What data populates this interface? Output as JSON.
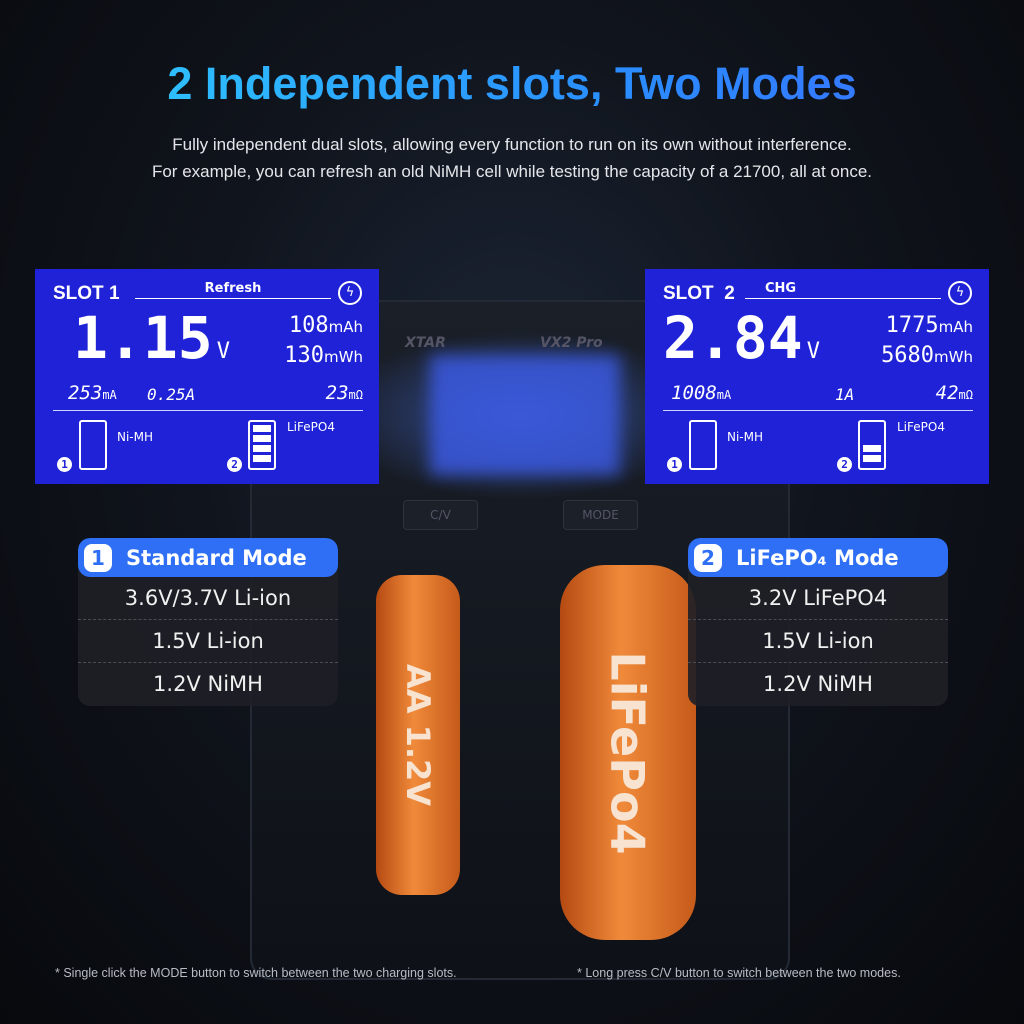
{
  "title": "2 Independent slots, Two Modes",
  "subtitle": [
    "Fully independent dual slots, allowing every function to run on its own without interference.",
    "For example, you can refresh an old NiMH cell while testing the capacity of a 21700, all at once."
  ],
  "device": {
    "brand": "XTAR",
    "model": "VX2 Pro",
    "buttons": [
      "C/V",
      "MODE"
    ]
  },
  "lcd": [
    {
      "slot": "SLOT 1",
      "mode": "Refresh",
      "voltage": "1.15",
      "voltage_unit": "V",
      "capacity": "108",
      "capacity_unit": "mAh",
      "energy": "130",
      "energy_unit": "mWh",
      "current": "253",
      "current_unit": "mA",
      "set_current": "0.25A",
      "resistance": "23",
      "resistance_unit": "mΩ",
      "mode1_chem": "Ni-MH",
      "mode2_chem": "LiFePO4",
      "mode2_bars": 4,
      "icon": "fast-charge-icon"
    },
    {
      "slot": "SLOT  2",
      "mode": "CHG",
      "voltage": "2.84",
      "voltage_unit": "V",
      "capacity": "1775",
      "capacity_unit": "mAh",
      "energy": "5680",
      "energy_unit": "mWh",
      "current": "1008",
      "current_unit": "mA",
      "set_current": "1A",
      "resistance": "42",
      "resistance_unit": "mΩ",
      "mode1_chem": "Ni-MH",
      "mode2_chem": "LiFePO4",
      "mode2_bars": 2,
      "icon": "fast-charge-icon"
    }
  ],
  "modes": [
    {
      "num": "1",
      "name": "Standard Mode",
      "items": [
        "3.6V/3.7V Li-ion",
        "1.5V Li-ion",
        "1.2V NiMH"
      ]
    },
    {
      "num": "2",
      "name": "LiFePO₄ Mode",
      "items": [
        "3.2V LiFePO4",
        "1.5V Li-ion",
        "1.2V NiMH"
      ]
    }
  ],
  "batteries": [
    "AA 1.2V",
    "LiFePo4"
  ],
  "footnotes": [
    "* Single click the MODE button to switch between the two charging slots.",
    "* Long press C/V button to switch between the two modes."
  ],
  "colors": {
    "accent": "#2e6ff5",
    "lcd": "#1f22d6",
    "title_start": "#2fd0ff",
    "title_end": "#3b6dff"
  }
}
